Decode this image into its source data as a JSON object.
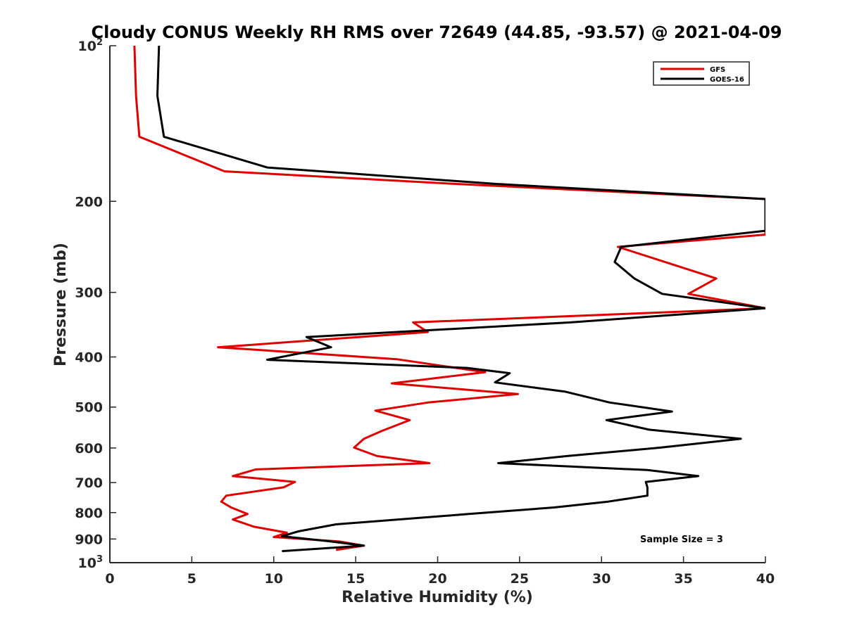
{
  "chart_data": {
    "type": "line",
    "title": "Cloudy CONUS Weekly RH RMS over 72649 (44.85, -93.57) @ 2021-04-09",
    "xlabel": "Relative Humidity (%)",
    "ylabel": "Pressure (mb)",
    "xlim": [
      0,
      40
    ],
    "ylim": [
      100,
      1000
    ],
    "y_scale": "log",
    "y_reversed": true,
    "grid": false,
    "legend_position": "top-right",
    "x_ticks": [
      {
        "value": 0,
        "label": "0"
      },
      {
        "value": 5,
        "label": "5"
      },
      {
        "value": 10,
        "label": "10"
      },
      {
        "value": 15,
        "label": "15"
      },
      {
        "value": 20,
        "label": "20"
      },
      {
        "value": 25,
        "label": "25"
      },
      {
        "value": 30,
        "label": "30"
      },
      {
        "value": 35,
        "label": "35"
      },
      {
        "value": 40,
        "label": "40"
      }
    ],
    "y_ticks": [
      {
        "value": 100,
        "base": "10",
        "sup": "2"
      },
      {
        "value": 200,
        "base": "200",
        "sup": ""
      },
      {
        "value": 300,
        "base": "300",
        "sup": ""
      },
      {
        "value": 400,
        "base": "400",
        "sup": ""
      },
      {
        "value": 500,
        "base": "500",
        "sup": ""
      },
      {
        "value": 600,
        "base": "600",
        "sup": ""
      },
      {
        "value": 700,
        "base": "700",
        "sup": ""
      },
      {
        "value": 800,
        "base": "800",
        "sup": ""
      },
      {
        "value": 900,
        "base": "900",
        "sup": ""
      },
      {
        "value": 1000,
        "base": "10",
        "sup": "3"
      }
    ],
    "annotation": "Sample Size = 3",
    "series": [
      {
        "name": "GFS",
        "color": "#e00000",
        "points": [
          [
            1.5,
            100
          ],
          [
            1.6,
            125
          ],
          [
            1.8,
            150
          ],
          [
            7.0,
            175
          ],
          [
            21.0,
            185
          ],
          [
            40,
            198
          ],
          [
            40,
            232
          ],
          [
            31.0,
            245
          ],
          [
            37.0,
            282
          ],
          [
            35.3,
            302
          ],
          [
            40,
            322
          ],
          [
            18.5,
            343
          ],
          [
            19.4,
            358
          ],
          [
            6.6,
            383
          ],
          [
            17.5,
            404
          ],
          [
            22.9,
            428
          ],
          [
            17.2,
            450
          ],
          [
            24.9,
            472
          ],
          [
            19.4,
            490
          ],
          [
            16.2,
            508
          ],
          [
            18.3,
            530
          ],
          [
            16.6,
            556
          ],
          [
            15.5,
            576
          ],
          [
            14.9,
            599
          ],
          [
            16.3,
            622
          ],
          [
            19.5,
            642
          ],
          [
            8.9,
            660
          ],
          [
            7.5,
            680
          ],
          [
            11.3,
            698
          ],
          [
            10.6,
            715
          ],
          [
            7.1,
            742
          ],
          [
            6.8,
            762
          ],
          [
            7.4,
            782
          ],
          [
            8.4,
            805
          ],
          [
            7.5,
            825
          ],
          [
            8.8,
            852
          ],
          [
            10.8,
            875
          ],
          [
            10.0,
            892
          ],
          [
            14.0,
            910
          ],
          [
            15.5,
            927
          ],
          [
            13.8,
            945
          ]
        ]
      },
      {
        "name": "GOES-16",
        "color": "#000000",
        "points": [
          [
            3.0,
            100
          ],
          [
            2.9,
            125
          ],
          [
            3.3,
            150
          ],
          [
            9.6,
            172
          ],
          [
            23.5,
            185
          ],
          [
            40,
            198
          ],
          [
            40,
            228
          ],
          [
            31.2,
            245
          ],
          [
            30.8,
            262
          ],
          [
            32.0,
            282
          ],
          [
            33.7,
            302
          ],
          [
            40,
            322
          ],
          [
            28.1,
            343
          ],
          [
            12.0,
            366
          ],
          [
            13.5,
            383
          ],
          [
            9.6,
            405
          ],
          [
            21.8,
            420
          ],
          [
            24.4,
            430
          ],
          [
            23.5,
            448
          ],
          [
            27.8,
            467
          ],
          [
            30.5,
            490
          ],
          [
            34.3,
            510
          ],
          [
            30.3,
            530
          ],
          [
            32.9,
            553
          ],
          [
            38.5,
            576
          ],
          [
            33.6,
            599
          ],
          [
            27.9,
            622
          ],
          [
            23.7,
            642
          ],
          [
            32.8,
            662
          ],
          [
            35.9,
            680
          ],
          [
            32.7,
            698
          ],
          [
            32.8,
            715
          ],
          [
            32.8,
            742
          ],
          [
            30.4,
            762
          ],
          [
            27.1,
            782
          ],
          [
            21.9,
            805
          ],
          [
            13.8,
            843
          ],
          [
            11.5,
            870
          ],
          [
            10.5,
            889
          ],
          [
            13.5,
            910
          ],
          [
            15.5,
            927
          ],
          [
            10.5,
            950
          ]
        ]
      }
    ]
  }
}
